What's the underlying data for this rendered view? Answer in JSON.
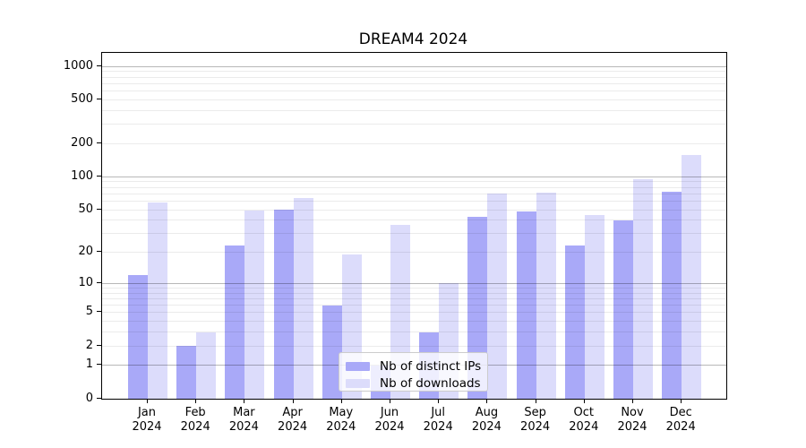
{
  "chart_data": {
    "type": "bar",
    "title": "DREAM4 2024",
    "categories": [
      "Jan 2024",
      "Feb 2024",
      "Mar 2024",
      "Apr 2024",
      "May 2024",
      "Jun 2024",
      "Jul 2024",
      "Aug 2024",
      "Sep 2024",
      "Oct 2024",
      "Nov 2024",
      "Dec 2024"
    ],
    "series": [
      {
        "name": "Nb of distinct IPs",
        "color": "#a9a9f8",
        "values": [
          12,
          2,
          23,
          50,
          6,
          1,
          3,
          43,
          48,
          23,
          40,
          73
        ]
      },
      {
        "name": "Nb of downloads",
        "color": "#dcdcfb",
        "values": [
          58,
          3,
          49,
          64,
          19,
          36,
          10,
          70,
          72,
          45,
          95,
          157
        ]
      }
    ],
    "xlabel": "",
    "ylabel": "",
    "yscale": "log1p",
    "ylim": [
      0,
      1330
    ],
    "yticks": [
      0,
      1,
      2,
      5,
      10,
      20,
      50,
      100,
      200,
      500,
      1000
    ],
    "ytick_labels": [
      "0",
      "1",
      "2",
      "5",
      "10",
      "20",
      "50",
      "100",
      "200",
      "500",
      "1000"
    ],
    "major_gridlines": [
      1,
      10,
      100,
      1000
    ],
    "minor_gridlines": [
      2,
      3,
      4,
      5,
      6,
      7,
      8,
      9,
      20,
      30,
      40,
      50,
      60,
      70,
      80,
      90,
      200,
      300,
      400,
      500,
      600,
      700,
      800,
      900
    ],
    "grid": true,
    "legend_position": "lower center",
    "colors": {
      "background": "#ffffff",
      "spine": "#000000",
      "text": "#000000",
      "grid_major": "rgba(0,0,0,0.28)",
      "grid_minor": "rgba(0,0,0,0.08)",
      "legend_bg": "rgba(255,255,255,0.8)",
      "legend_border": "#cccccc"
    }
  }
}
